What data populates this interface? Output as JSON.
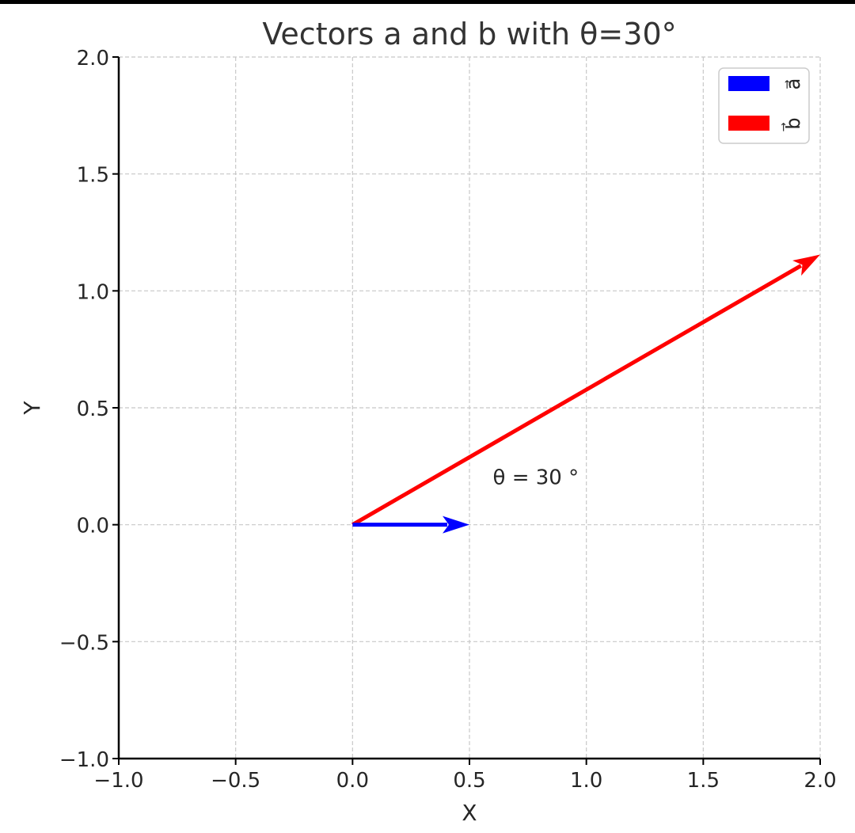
{
  "chart_data": {
    "type": "vector",
    "title": "Vectors a and b with θ=30°",
    "xlabel": "X",
    "ylabel": "Y",
    "xlim": [
      -1.0,
      2.0
    ],
    "ylim": [
      -1.0,
      2.0
    ],
    "x_ticks": [
      "−1.0",
      "−0.5",
      "0.0",
      "0.5",
      "1.0",
      "1.5",
      "2.0"
    ],
    "y_ticks": [
      "−1.0",
      "−0.5",
      "0.0",
      "0.5",
      "1.0",
      "1.5",
      "2.0"
    ],
    "x_tick_values": [
      -1.0,
      -0.5,
      0.0,
      0.5,
      1.0,
      1.5,
      2.0
    ],
    "y_tick_values": [
      -1.0,
      -0.5,
      0.0,
      0.5,
      1.0,
      1.5,
      2.0
    ],
    "grid": true,
    "legend_position": "top-right",
    "series": [
      {
        "name": "a⃗",
        "color": "#0000ff",
        "start": [
          0,
          0
        ],
        "end": [
          0.5,
          0
        ]
      },
      {
        "name": "b⃗",
        "color": "#ff0000",
        "start": [
          0,
          0
        ],
        "end": [
          2.0,
          1.155
        ]
      }
    ],
    "annotation": {
      "text": "θ = 30 °",
      "x": 0.6,
      "y": 0.2
    }
  }
}
